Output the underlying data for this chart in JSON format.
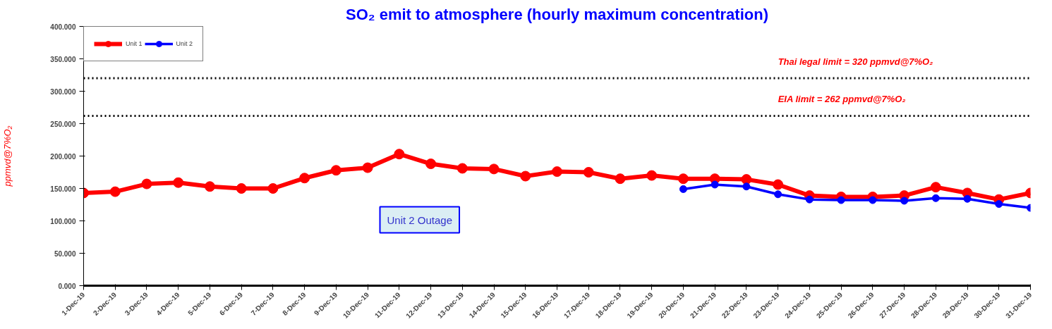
{
  "chart_data": {
    "type": "line",
    "title": "SO₂ emit to atmosphere (hourly maximum concentration)",
    "ylabel": "ppmvd@7%O₂",
    "categories": [
      "1-Dec-19",
      "2-Dec-19",
      "3-Dec-19",
      "4-Dec-19",
      "5-Dec-19",
      "6-Dec-19",
      "7-Dec-19",
      "8-Dec-19",
      "9-Dec-19",
      "10-Dec-19",
      "11-Dec-19",
      "12-Dec-19",
      "13-Dec-19",
      "14-Dec-19",
      "15-Dec-19",
      "16-Dec-19",
      "17-Dec-19",
      "18-Dec-19",
      "19-Dec-19",
      "20-Dec-19",
      "21-Dec-19",
      "22-Dec-19",
      "23-Dec-19",
      "24-Dec-19",
      "25-Dec-19",
      "26-Dec-19",
      "27-Dec-19",
      "28-Dec-19",
      "29-Dec-19",
      "30-Dec-19",
      "31-Dec-19"
    ],
    "series": [
      {
        "name": "Unit 1",
        "color": "#ff0000",
        "values": [
          143,
          145,
          157,
          159,
          153,
          150,
          150,
          166,
          178,
          182,
          203,
          188,
          181,
          180,
          169,
          176,
          175,
          165,
          170,
          165,
          165,
          164,
          156,
          139,
          137,
          137,
          139,
          152,
          143,
          133,
          143
        ]
      },
      {
        "name": "Unit 2",
        "color": "#0000ff",
        "values": [
          null,
          null,
          null,
          null,
          null,
          null,
          null,
          null,
          null,
          null,
          null,
          null,
          null,
          null,
          null,
          null,
          null,
          null,
          null,
          149,
          156,
          153,
          141,
          133,
          132,
          132,
          131,
          135,
          134,
          126,
          120
        ]
      }
    ],
    "ylim": [
      0,
      400
    ],
    "yticks": [
      {
        "value": 0,
        "label": "0.000"
      },
      {
        "value": 50,
        "label": "50.000"
      },
      {
        "value": 100,
        "label": "100.000"
      },
      {
        "value": 150,
        "label": "150.000"
      },
      {
        "value": 200,
        "label": "200.000"
      },
      {
        "value": 250,
        "label": "250.000"
      },
      {
        "value": 300,
        "label": "300.000"
      },
      {
        "value": 350,
        "label": "350.000"
      },
      {
        "value": 400,
        "label": "400.000"
      }
    ],
    "ref_lines": [
      {
        "axis": "y",
        "value": 320,
        "label": "Thai legal  limit  = 320 ppmvd@7%O₂",
        "color": "#000000",
        "line_style": "dotted"
      },
      {
        "axis": "y",
        "value": 262,
        "label": "EIA limit  = 262 ppmvd@7%O₂",
        "color": "#000000",
        "line_style": "dotted"
      }
    ],
    "annotations": [
      "Unit 2 Outage"
    ],
    "legend": "top left",
    "grid": false,
    "marker": "circle",
    "line_style": "solid"
  }
}
